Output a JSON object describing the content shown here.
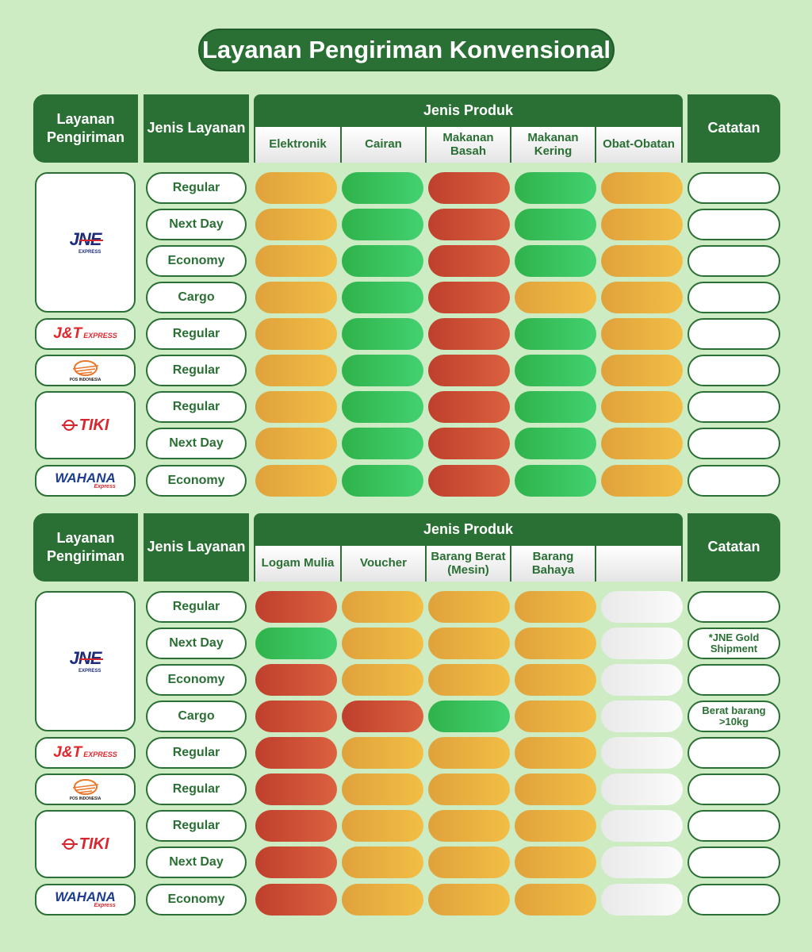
{
  "title": "Layanan Pengiriman Konvensional",
  "headers": {
    "layanan": "Layanan Pengiriman",
    "jenis": "Jenis Layanan",
    "produk": "Jenis Produk",
    "catatan": "Catatan"
  },
  "logos": {
    "jne": "JNE",
    "jne_sub": "EXPRESS",
    "jt": "J&T",
    "jt_sub": "EXPRESS",
    "pos_sub": "POS INDONESIA",
    "tiki": "TIKI",
    "wahana": "WAHANA",
    "wahana_sub": "Express"
  },
  "legend_colors": {
    "orange": "#f0b445",
    "green": "#3cc462",
    "red": "#cf4f35",
    "blank": "#f0f0f0"
  },
  "table1": {
    "products": [
      "Elektronik",
      "Cairan",
      "Makanan Basah",
      "Makanan Kering",
      "Obat-Obatan"
    ],
    "rows": [
      {
        "service": "Regular",
        "cells": [
          "o",
          "g",
          "r",
          "g",
          "o"
        ],
        "note": ""
      },
      {
        "service": "Next Day",
        "cells": [
          "o",
          "g",
          "r",
          "g",
          "o"
        ],
        "note": ""
      },
      {
        "service": "Economy",
        "cells": [
          "o",
          "g",
          "r",
          "g",
          "o"
        ],
        "note": ""
      },
      {
        "service": "Cargo",
        "cells": [
          "o",
          "g",
          "r",
          "o",
          "o"
        ],
        "note": ""
      },
      {
        "service": "Regular",
        "cells": [
          "o",
          "g",
          "r",
          "g",
          "o"
        ],
        "note": ""
      },
      {
        "service": "Regular",
        "cells": [
          "o",
          "g",
          "r",
          "g",
          "o"
        ],
        "note": ""
      },
      {
        "service": "Regular",
        "cells": [
          "o",
          "g",
          "r",
          "g",
          "o"
        ],
        "note": ""
      },
      {
        "service": "Next Day",
        "cells": [
          "o",
          "g",
          "r",
          "g",
          "o"
        ],
        "note": ""
      },
      {
        "service": "Economy",
        "cells": [
          "o",
          "g",
          "r",
          "g",
          "o"
        ],
        "note": ""
      }
    ]
  },
  "table2": {
    "products": [
      "Logam Mulia",
      "Voucher",
      "Barang Berat (Mesin)",
      "Barang Bahaya",
      ""
    ],
    "rows": [
      {
        "service": "Regular",
        "cells": [
          "r",
          "o",
          "o",
          "o",
          "w"
        ],
        "note": ""
      },
      {
        "service": "Next Day",
        "cells": [
          "g",
          "o",
          "o",
          "o",
          "w"
        ],
        "note": "*JNE Gold Shipment"
      },
      {
        "service": "Economy",
        "cells": [
          "r",
          "o",
          "o",
          "o",
          "w"
        ],
        "note": ""
      },
      {
        "service": "Cargo",
        "cells": [
          "r",
          "r",
          "g",
          "o",
          "w"
        ],
        "note": "Berat barang >10kg"
      },
      {
        "service": "Regular",
        "cells": [
          "r",
          "o",
          "o",
          "o",
          "w"
        ],
        "note": ""
      },
      {
        "service": "Regular",
        "cells": [
          "r",
          "o",
          "o",
          "o",
          "w"
        ],
        "note": ""
      },
      {
        "service": "Regular",
        "cells": [
          "r",
          "o",
          "o",
          "o",
          "w"
        ],
        "note": ""
      },
      {
        "service": "Next Day",
        "cells": [
          "r",
          "o",
          "o",
          "o",
          "w"
        ],
        "note": ""
      },
      {
        "service": "Economy",
        "cells": [
          "r",
          "o",
          "o",
          "o",
          "w"
        ],
        "note": ""
      }
    ]
  }
}
